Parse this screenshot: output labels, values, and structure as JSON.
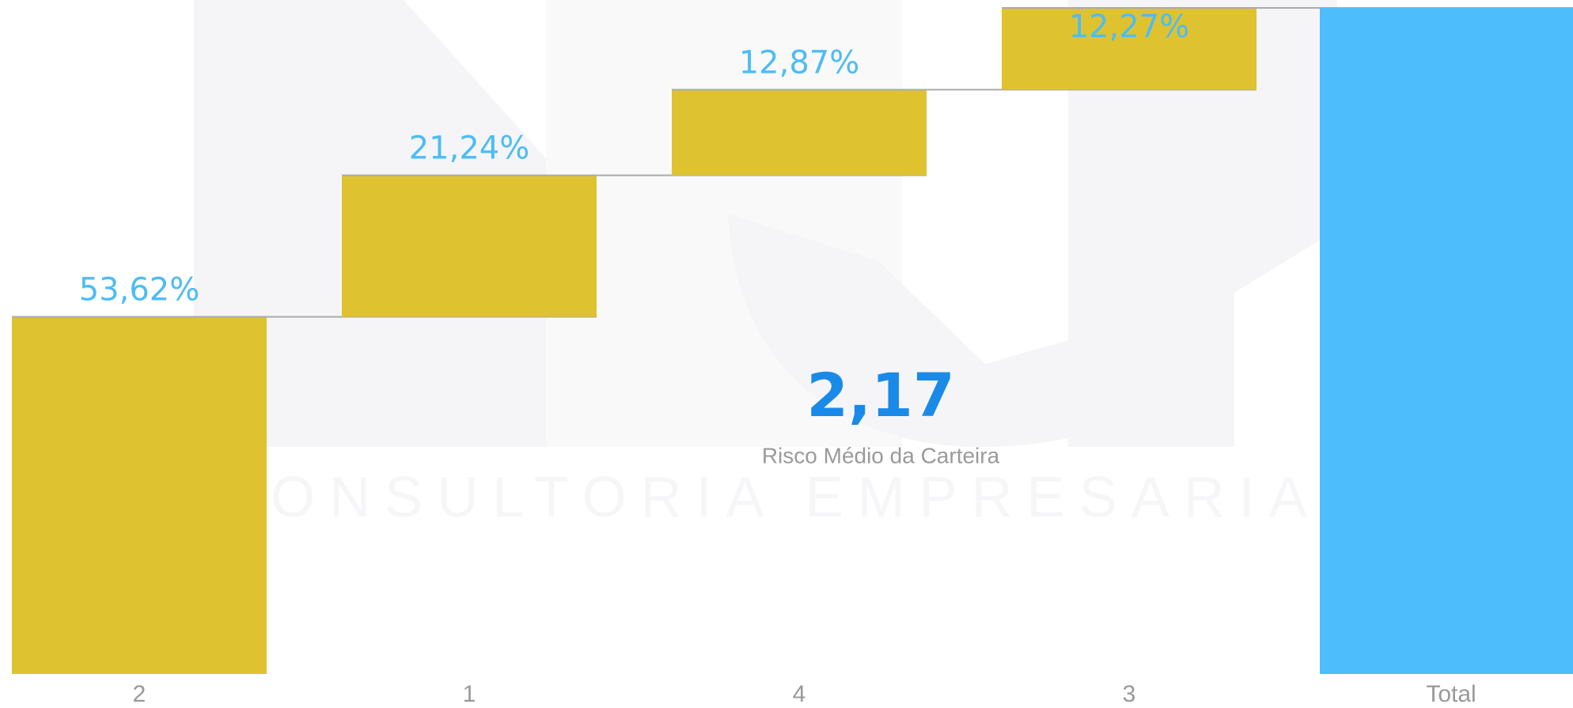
{
  "chart_data": {
    "type": "waterfall",
    "categories": [
      "2",
      "1",
      "4",
      "3"
    ],
    "values": [
      53.62,
      21.24,
      12.87,
      12.27
    ],
    "value_labels": [
      "53,62%",
      "21,24%",
      "12,87%",
      "12,27%"
    ],
    "total_label": "Total",
    "total_value": 100,
    "color": "#dfc230",
    "total_color": "#4dbdfc",
    "ylim": [
      0,
      100
    ]
  },
  "kpi": {
    "value": "2,17",
    "label": "Risco Médio da Carteira"
  },
  "watermark": "CONSULTORIA EMPRESARIAL"
}
